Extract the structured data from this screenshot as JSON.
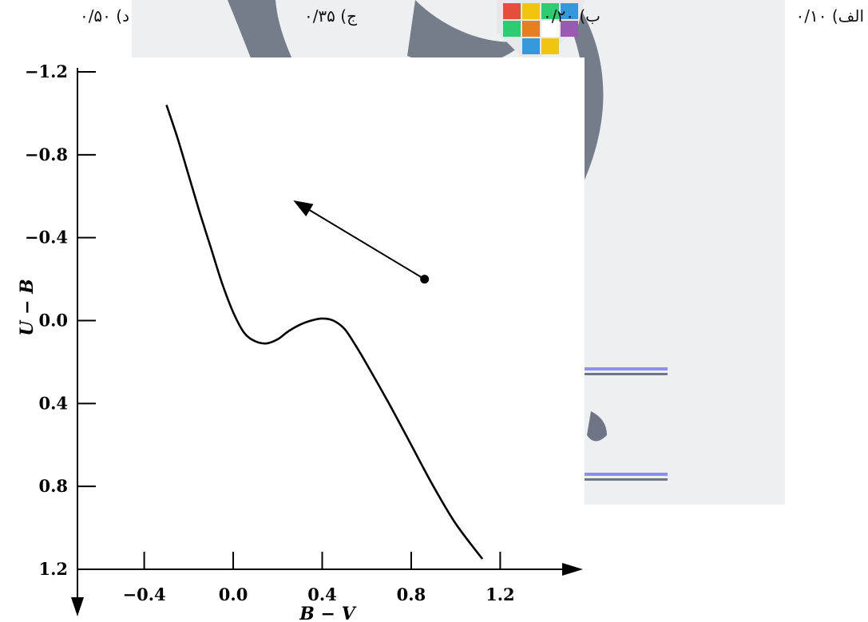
{
  "options": [
    {
      "letter": "الف)",
      "value": "۰/۱۰"
    },
    {
      "letter": "ب)",
      "value": "۰/۲۰"
    },
    {
      "letter": "ج)",
      "value": "۰/۳۵"
    },
    {
      "letter": "د)",
      "value": "۰/۵۰"
    }
  ],
  "colors": {
    "watermark": "#6f7584",
    "panel": "#edf0f1",
    "accent_lines": "#8c8ff0",
    "curve": "#000000"
  },
  "chart_data": {
    "type": "line",
    "title": "",
    "xlabel": "B − V",
    "ylabel": "U − B",
    "x_ticks": [
      "−0.4",
      "0.0",
      "0.4",
      "0.8",
      "1.2"
    ],
    "y_ticks": [
      "−1.2",
      "−0.8",
      "−0.4",
      "0.0",
      "0.4",
      "0.8",
      "1.2"
    ],
    "xlim": [
      -0.7,
      1.5
    ],
    "ylim": [
      -1.2,
      1.2
    ],
    "y_inverted": true,
    "grid": false,
    "series": [
      {
        "x": [
          -0.3,
          -0.25,
          -0.2,
          -0.15,
          -0.1,
          -0.05,
          0.0,
          0.05,
          0.1,
          0.15,
          0.2,
          0.25,
          0.3,
          0.35,
          0.4,
          0.45,
          0.5,
          0.55,
          0.6,
          0.7,
          0.8,
          0.9,
          1.0,
          1.12
        ],
        "y": [
          -1.04,
          -0.88,
          -0.7,
          -0.52,
          -0.35,
          -0.18,
          -0.04,
          0.06,
          0.1,
          0.11,
          0.09,
          0.05,
          0.02,
          0.0,
          -0.01,
          0.0,
          0.04,
          0.12,
          0.21,
          0.4,
          0.6,
          0.8,
          0.98,
          1.15
        ]
      }
    ],
    "point": {
      "x": 0.86,
      "y": -0.2
    },
    "arrow_to": {
      "x": 0.27,
      "y": -0.58
    }
  }
}
